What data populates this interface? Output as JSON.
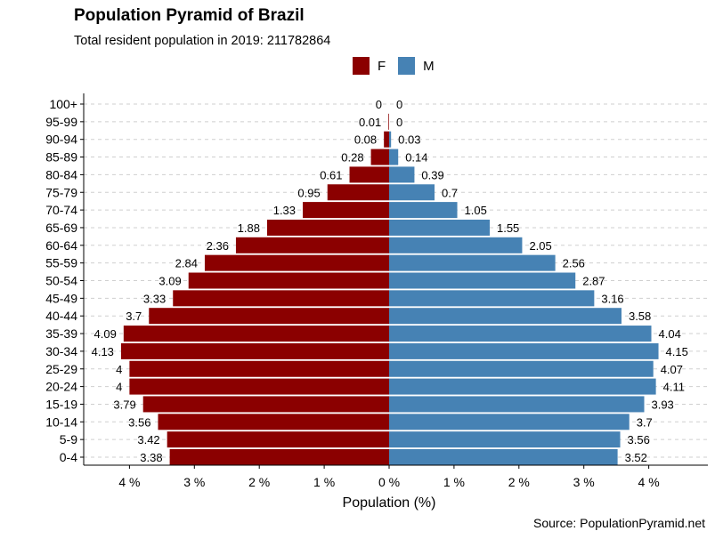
{
  "title": "Population Pyramid of Brazil",
  "subtitle": "Total resident population in 2019: 211782864",
  "caption": "Source: PopulationPyramid.net",
  "colors": {
    "female": "#8b0000",
    "male": "#4682b4"
  },
  "legend": [
    {
      "key": "F",
      "color": "#8b0000"
    },
    {
      "key": "M",
      "color": "#4682b4"
    }
  ],
  "chart_data": {
    "type": "bar",
    "orientation": "horizontal-diverging",
    "categories": [
      "0-4",
      "5-9",
      "10-14",
      "15-19",
      "20-24",
      "25-29",
      "30-34",
      "35-39",
      "40-44",
      "45-49",
      "50-54",
      "55-59",
      "60-64",
      "65-69",
      "70-74",
      "75-79",
      "80-84",
      "85-89",
      "90-94",
      "95-99",
      "100+"
    ],
    "series": [
      {
        "name": "F",
        "side": "left",
        "values": [
          3.38,
          3.42,
          3.56,
          3.79,
          4,
          4,
          4.13,
          4.09,
          3.7,
          3.33,
          3.09,
          2.84,
          2.36,
          1.88,
          1.33,
          0.95,
          0.61,
          0.28,
          0.08,
          0.01,
          0
        ]
      },
      {
        "name": "M",
        "side": "right",
        "values": [
          3.52,
          3.56,
          3.7,
          3.93,
          4.11,
          4.07,
          4.15,
          4.04,
          3.58,
          3.16,
          2.87,
          2.56,
          2.05,
          1.55,
          1.05,
          0.7,
          0.39,
          0.14,
          0.03,
          0,
          0
        ]
      }
    ],
    "value_labels": {
      "F": [
        "3.38",
        "3.42",
        "3.56",
        "3.79",
        "4",
        "4",
        "4.13",
        "4.09",
        "3.7",
        "3.33",
        "3.09",
        "2.84",
        "2.36",
        "1.88",
        "1.33",
        "0.95",
        "0.61",
        "0.28",
        "0.08",
        "0.01",
        "0"
      ],
      "M": [
        "3.52",
        "3.56",
        "3.7",
        "3.93",
        "4.11",
        "4.07",
        "4.15",
        "4.04",
        "3.58",
        "3.16",
        "2.87",
        "2.56",
        "2.05",
        "1.55",
        "1.05",
        "0.7",
        "0.39",
        "0.14",
        "0.03",
        "0",
        "0"
      ]
    },
    "xticks": [
      -4,
      -3,
      -2,
      -1,
      0,
      1,
      2,
      3,
      4
    ],
    "xtick_labels": [
      "4 %",
      "3 %",
      "2 %",
      "1 %",
      "0 %",
      "1 %",
      "2 %",
      "3 %",
      "4 %"
    ],
    "xlabel": "Population (%)",
    "ylabel": "",
    "xlim": [
      -4.5,
      4.5
    ],
    "grid": "horizontal-dashed",
    "legend_position": "top-center"
  }
}
